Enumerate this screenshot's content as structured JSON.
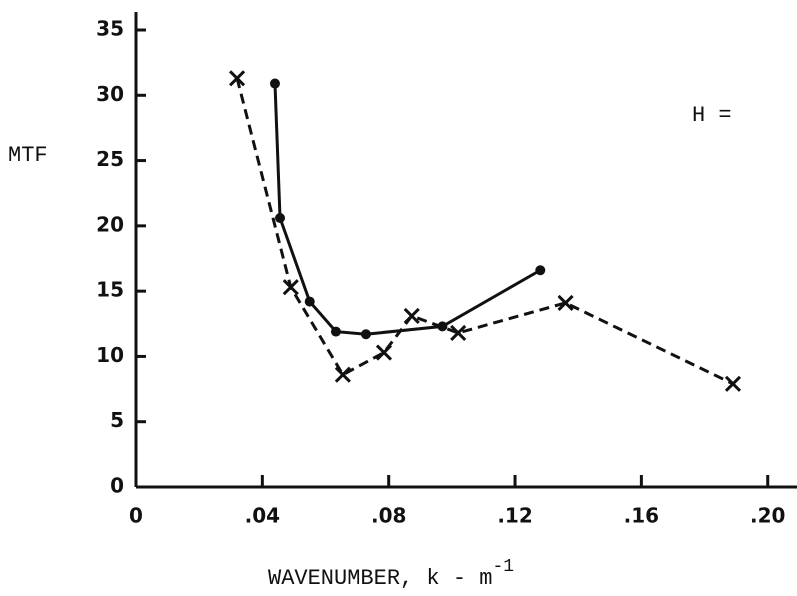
{
  "chart_data": {
    "type": "line",
    "y_label": "MTF",
    "x_label": "WAVENUMBER, k - m",
    "x_label_superscript": "-1",
    "annotation": "H =",
    "xlim": [
      0,
      0.208
    ],
    "xticks": [
      0,
      {
        "value": 0.04,
        "label": ".04"
      },
      {
        "value": 0.08,
        "label": ".08"
      },
      {
        "value": 0.12,
        "label": ".12"
      },
      {
        "value": 0.16,
        "label": ".16"
      },
      {
        "value": 0.2,
        "label": ".20"
      }
    ],
    "ylim": [
      0,
      35
    ],
    "yticks": [
      0,
      5,
      10,
      15,
      20,
      25,
      30,
      35
    ],
    "series": [
      {
        "color": "#111111",
        "style": "solid",
        "marker": "o",
        "x": [
          0.044,
          0.0456,
          0.055,
          0.0633,
          0.0728,
          0.097,
          0.128
        ],
        "values": [
          30.9,
          20.6,
          14.2,
          11.9,
          11.7,
          12.3,
          16.6
        ]
      },
      {
        "color": "#111111",
        "style": "dashed",
        "marker": "x",
        "x": [
          0.032,
          0.049,
          0.0655,
          0.0785,
          0.0873,
          0.102,
          0.136,
          0.189
        ],
        "values": [
          31.3,
          15.3,
          8.6,
          10.3,
          13.1,
          11.8,
          14.1,
          7.9
        ]
      }
    ]
  }
}
